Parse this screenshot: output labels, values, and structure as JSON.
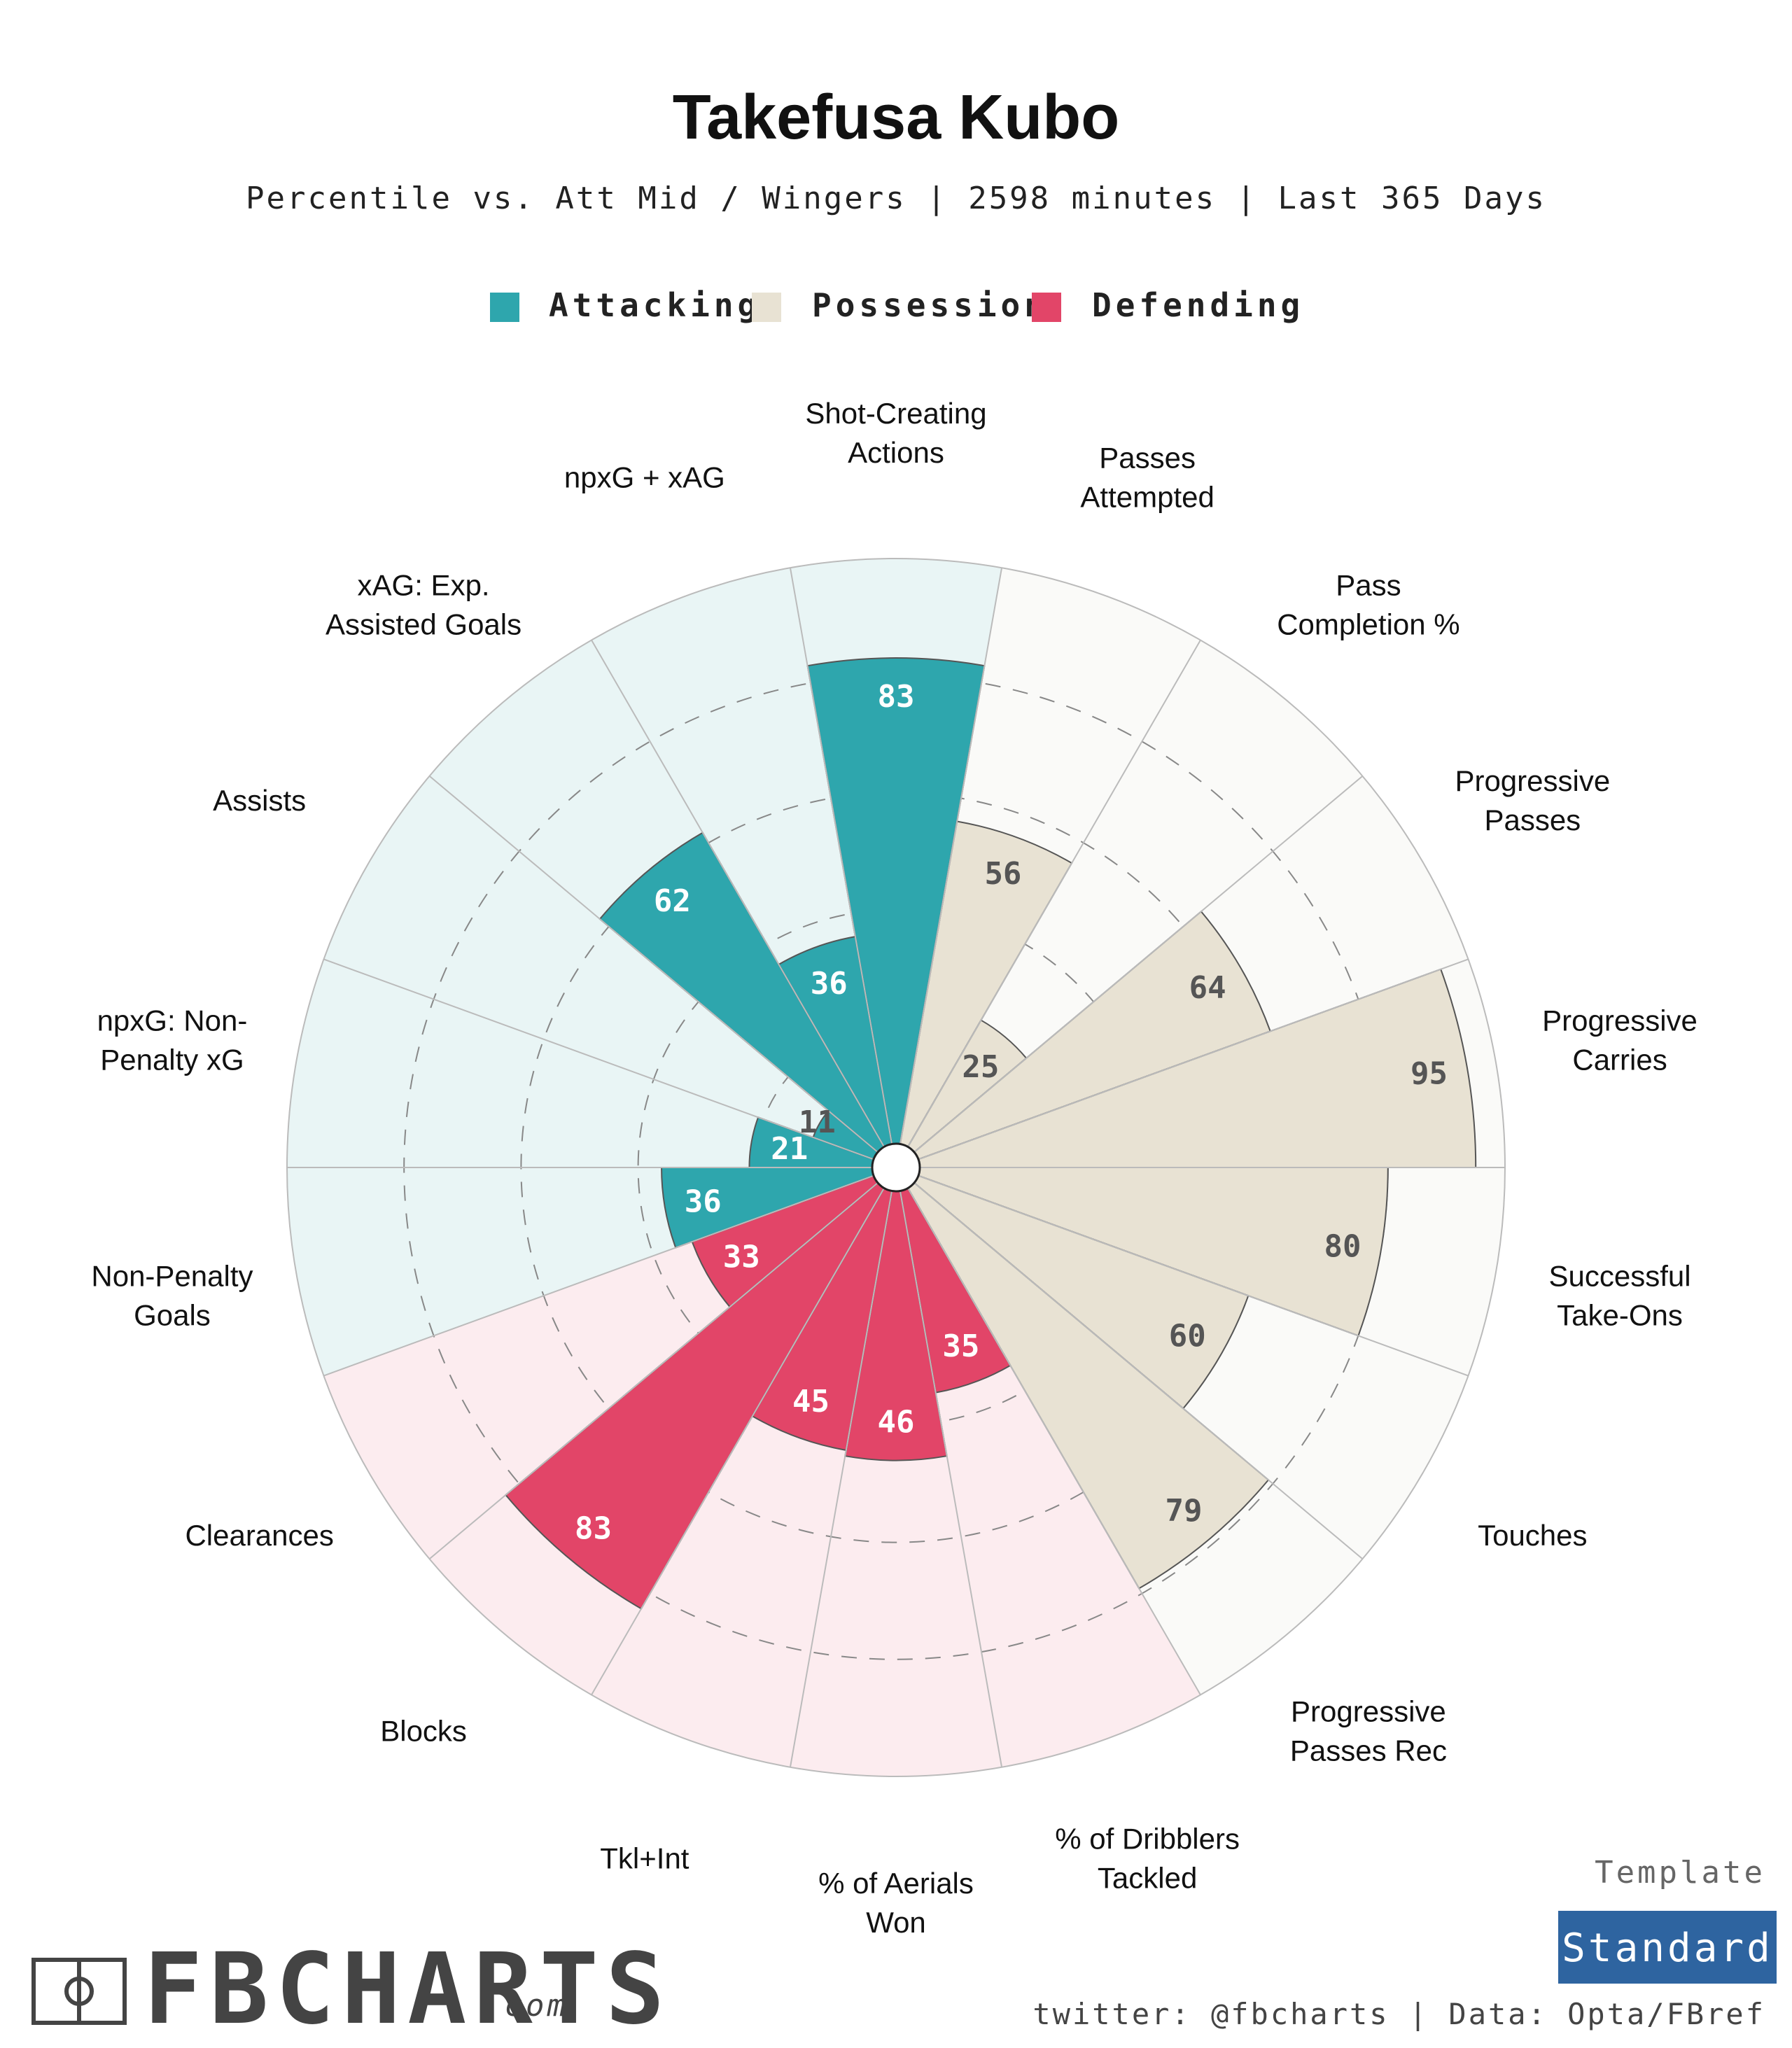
{
  "title": "Takefusa Kubo",
  "subtitle": "Percentile vs. Att Mid / Wingers | 2598 minutes | Last 365 Days",
  "legend": [
    {
      "label": "Attacking",
      "color": "#2ea6ad"
    },
    {
      "label": "Possession",
      "color": "#e8e2d3"
    },
    {
      "label": "Defending",
      "color": "#e24568"
    }
  ],
  "colors": {
    "attacking": "#2ea6ad",
    "attacking_bg": "#e9f5f5",
    "possession": "#e8e2d3",
    "possession_bg": "#fafaf8",
    "defending": "#e24568",
    "defending_bg": "#fcecef"
  },
  "chart_data": {
    "type": "polar-bar",
    "scale_max": 100,
    "gridlines": [
      20,
      40,
      60,
      80
    ],
    "series": [
      {
        "name": "Attacking",
        "group": "attacking"
      },
      {
        "name": "Possession",
        "group": "possession"
      },
      {
        "name": "Defending",
        "group": "defending"
      }
    ],
    "categories": [
      {
        "label": [
          "Shot-Creating",
          "Actions"
        ],
        "value": 83,
        "group": "attacking"
      },
      {
        "label": [
          "Passes",
          "Attempted"
        ],
        "value": 56,
        "group": "possession"
      },
      {
        "label": [
          "Pass",
          "Completion %"
        ],
        "value": 25,
        "group": "possession"
      },
      {
        "label": [
          "Progressive",
          "Passes"
        ],
        "value": 64,
        "group": "possession"
      },
      {
        "label": [
          "Progressive",
          "Carries"
        ],
        "value": 95,
        "group": "possession"
      },
      {
        "label": [
          "Successful",
          "Take-Ons"
        ],
        "value": 80,
        "group": "possession"
      },
      {
        "label": [
          "Touches"
        ],
        "value": 60,
        "group": "possession"
      },
      {
        "label": [
          "Progressive",
          "Passes Rec"
        ],
        "value": 79,
        "group": "possession"
      },
      {
        "label": [
          "% of Dribblers",
          "Tackled"
        ],
        "value": 35,
        "group": "defending"
      },
      {
        "label": [
          "% of Aerials",
          "Won"
        ],
        "value": 46,
        "group": "defending"
      },
      {
        "label": [
          "Tkl+Int"
        ],
        "value": 45,
        "group": "defending"
      },
      {
        "label": [
          "Blocks"
        ],
        "value": 83,
        "group": "defending"
      },
      {
        "label": [
          "Clearances"
        ],
        "value": 33,
        "group": "defending"
      },
      {
        "label": [
          "Non-Penalty",
          "Goals"
        ],
        "value": 36,
        "group": "attacking"
      },
      {
        "label": [
          "npxG: Non-",
          "Penalty xG"
        ],
        "value": 21,
        "group": "attacking"
      },
      {
        "label": [
          "Assists"
        ],
        "value": 11,
        "group": "attacking"
      },
      {
        "label": [
          "xAG: Exp.",
          "Assisted Goals"
        ],
        "value": 62,
        "group": "attacking"
      },
      {
        "label": [
          "npxG + xAG"
        ],
        "value": 36,
        "group": "attacking"
      }
    ]
  },
  "branding": {
    "logo_text": "FBCHARTS",
    "logo_suffix": ".com"
  },
  "template": {
    "label": "Template",
    "value": "Standard",
    "color": "#2e64a0"
  },
  "footer": "twitter: @fbcharts | Data: Opta/FBref"
}
